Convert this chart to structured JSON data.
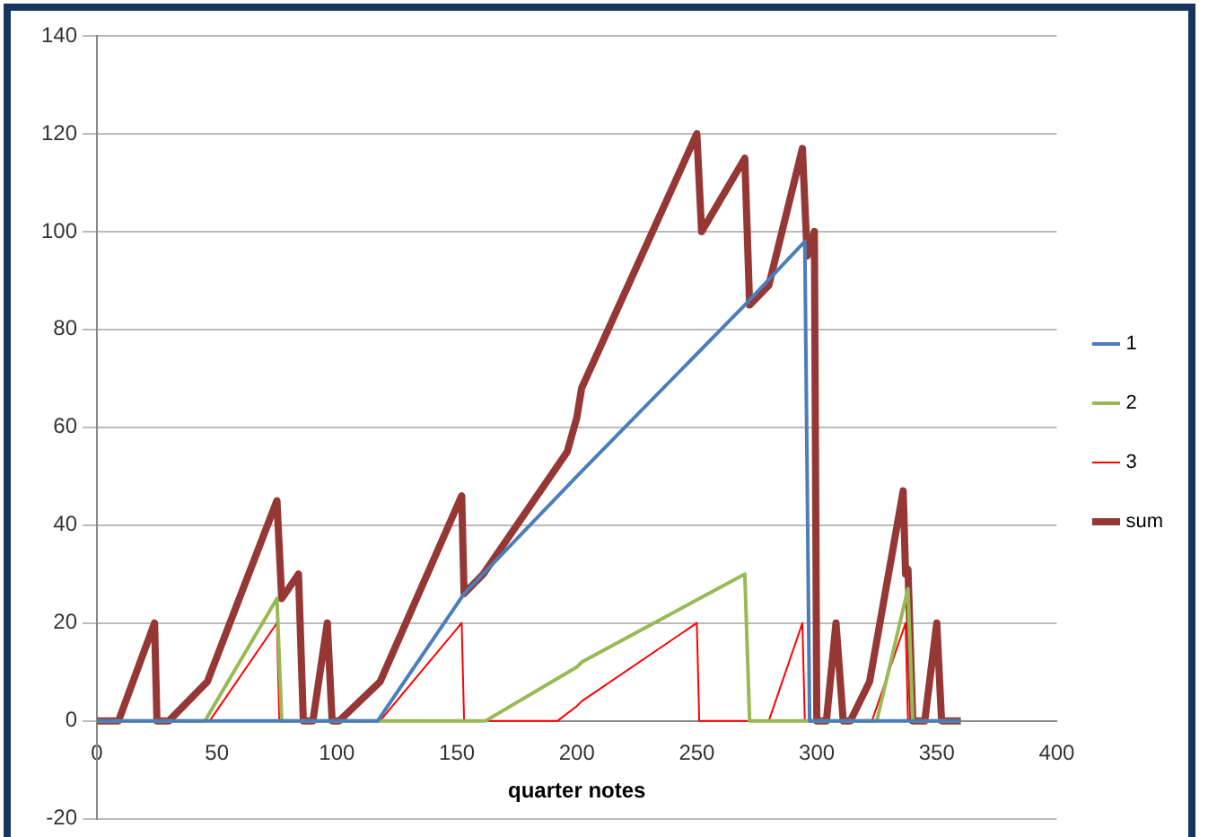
{
  "chart_data": {
    "type": "line",
    "xlabel": "quarter notes",
    "xlim": [
      0,
      400
    ],
    "xticks": [
      0,
      50,
      100,
      150,
      200,
      250,
      300,
      350,
      400
    ],
    "ylim": [
      -20,
      140
    ],
    "yticks": [
      -20,
      0,
      20,
      40,
      60,
      80,
      100,
      120,
      140
    ],
    "grid": "y",
    "legend": "right",
    "marker": "none",
    "line_style": "solid",
    "series": [
      {
        "name": "1",
        "color": "#4a7ebb",
        "x": [
          0,
          117,
          153,
          200,
          202,
          270,
          295,
          297,
          360
        ],
        "values": [
          0,
          0,
          26,
          50,
          51,
          85,
          98,
          0,
          0
        ]
      },
      {
        "name": "2",
        "color": "#98b954",
        "x": [
          0,
          45,
          75,
          77,
          162,
          200,
          202,
          270,
          272,
          325,
          338,
          340,
          360
        ],
        "values": [
          0,
          0,
          25,
          0,
          0,
          11,
          12,
          30,
          0,
          0,
          27,
          0,
          0
        ]
      },
      {
        "name": "3",
        "color": "#ff0000",
        "x": [
          0,
          47,
          75,
          76,
          118,
          152,
          153,
          192,
          200,
          202,
          250,
          251,
          280,
          294,
          295,
          323,
          337,
          338,
          360
        ],
        "values": [
          0,
          0,
          20,
          0,
          0,
          20,
          0,
          0,
          3,
          4,
          20,
          0,
          0,
          20,
          0,
          0,
          20,
          0,
          0
        ]
      },
      {
        "name": "sum",
        "color": "#953735",
        "x": [
          0,
          9,
          24,
          25,
          30,
          46,
          75,
          77,
          84,
          86,
          90,
          96,
          98,
          101,
          118,
          152,
          153,
          161,
          196,
          200,
          202,
          250,
          252,
          270,
          272,
          280,
          294,
          296,
          299,
          300,
          304,
          308,
          311,
          314,
          322,
          336,
          337,
          338,
          340,
          345,
          350,
          352,
          360
        ],
        "values": [
          0,
          0,
          20,
          0,
          0,
          8,
          45,
          25,
          30,
          0,
          0,
          20,
          0,
          0,
          8,
          46,
          26,
          30,
          55,
          62,
          68,
          120,
          100,
          115,
          85,
          89,
          117,
          95,
          100,
          0,
          0,
          20,
          0,
          0,
          8,
          47,
          30,
          31,
          0,
          0,
          20,
          0,
          0
        ]
      }
    ]
  }
}
